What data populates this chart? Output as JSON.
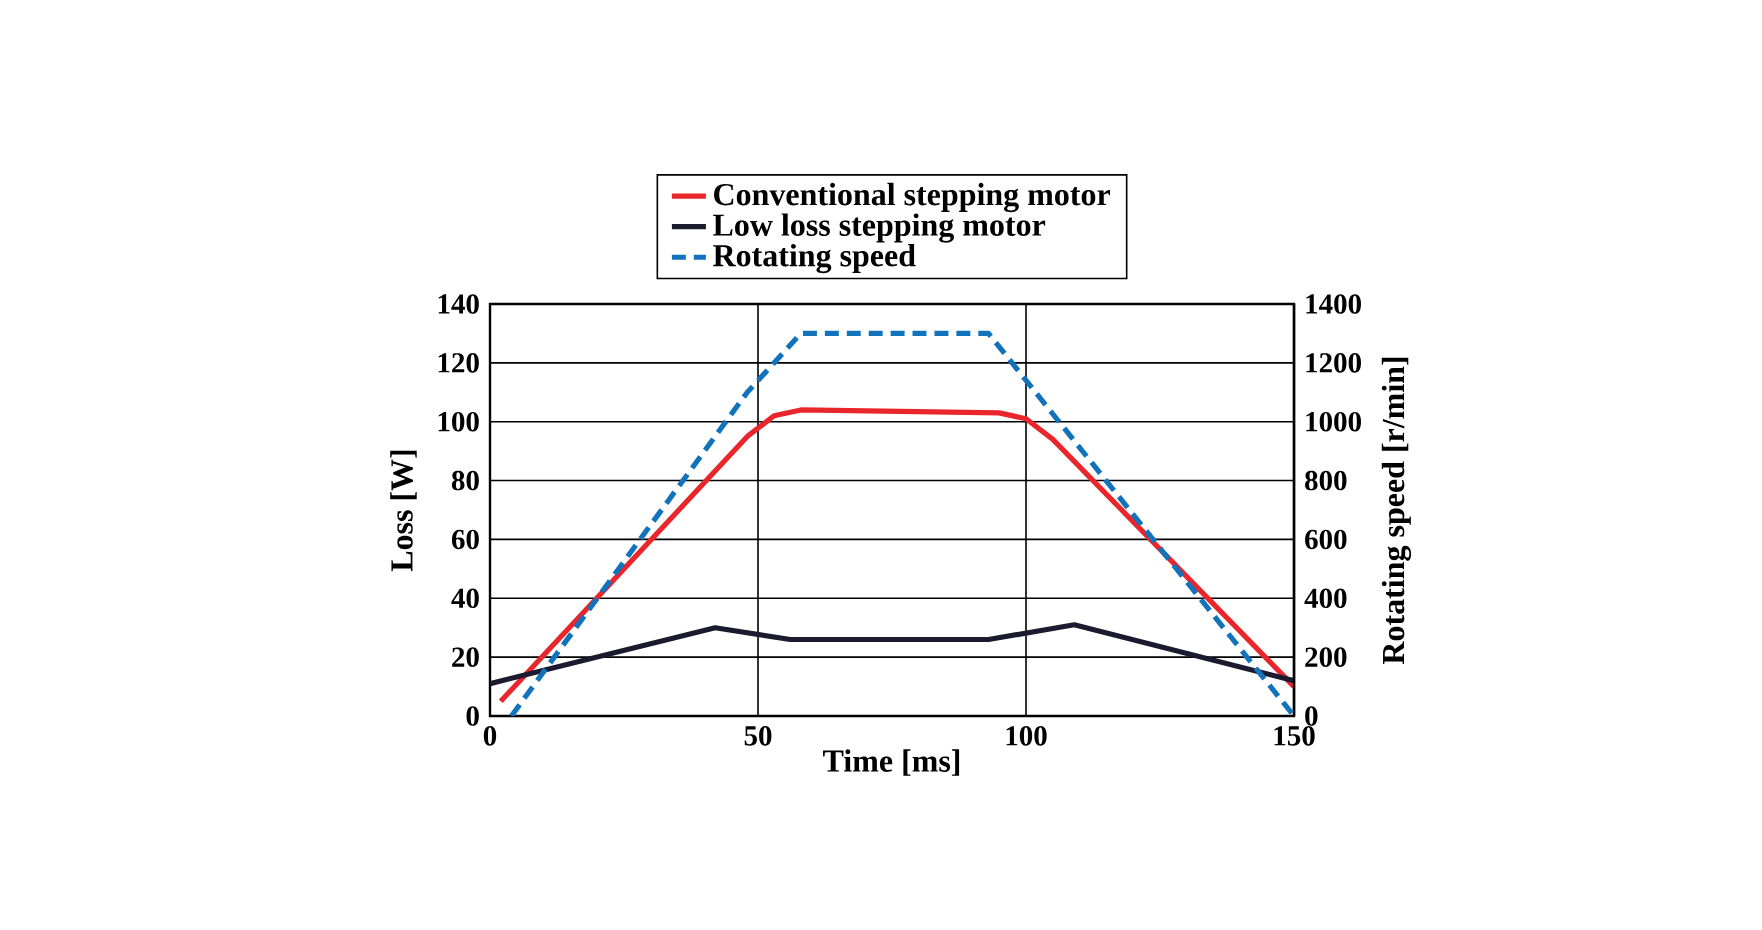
{
  "chart_data": {
    "type": "line",
    "xlabel": "Time [ms]",
    "ylabel": "Loss [W]",
    "y2label": "Rotating speed [r/min]",
    "xlim": [
      0,
      150
    ],
    "xticks": [
      0,
      50,
      100,
      150
    ],
    "ylim": [
      0,
      140
    ],
    "yticks": [
      0,
      20,
      40,
      60,
      80,
      100,
      120,
      140
    ],
    "y2lim": [
      0,
      1400
    ],
    "y2ticks": [
      0,
      200,
      400,
      600,
      800,
      1000,
      1200,
      1400
    ],
    "grid": true,
    "legend": "top",
    "series": [
      {
        "name": "Conventional stepping motor",
        "color": "#e8262b",
        "line_style": "solid",
        "x": [
          2,
          48,
          53,
          58,
          95,
          100,
          105,
          150
        ],
        "values": [
          5,
          95,
          102,
          104,
          103,
          101,
          94,
          10
        ]
      },
      {
        "name": "Low loss stepping motor",
        "color": "#1c1a2e",
        "line_style": "solid",
        "x": [
          0,
          42,
          56,
          93,
          109,
          150
        ],
        "values": [
          11,
          30,
          26,
          26,
          31,
          12
        ]
      },
      {
        "name": "Rotating speed",
        "color": "#1173bb",
        "line_style": "dashed",
        "axis": "y2",
        "x": [
          4,
          48,
          58,
          93,
          150
        ],
        "values": [
          0,
          1100,
          1300,
          1300,
          0
        ]
      }
    ]
  }
}
